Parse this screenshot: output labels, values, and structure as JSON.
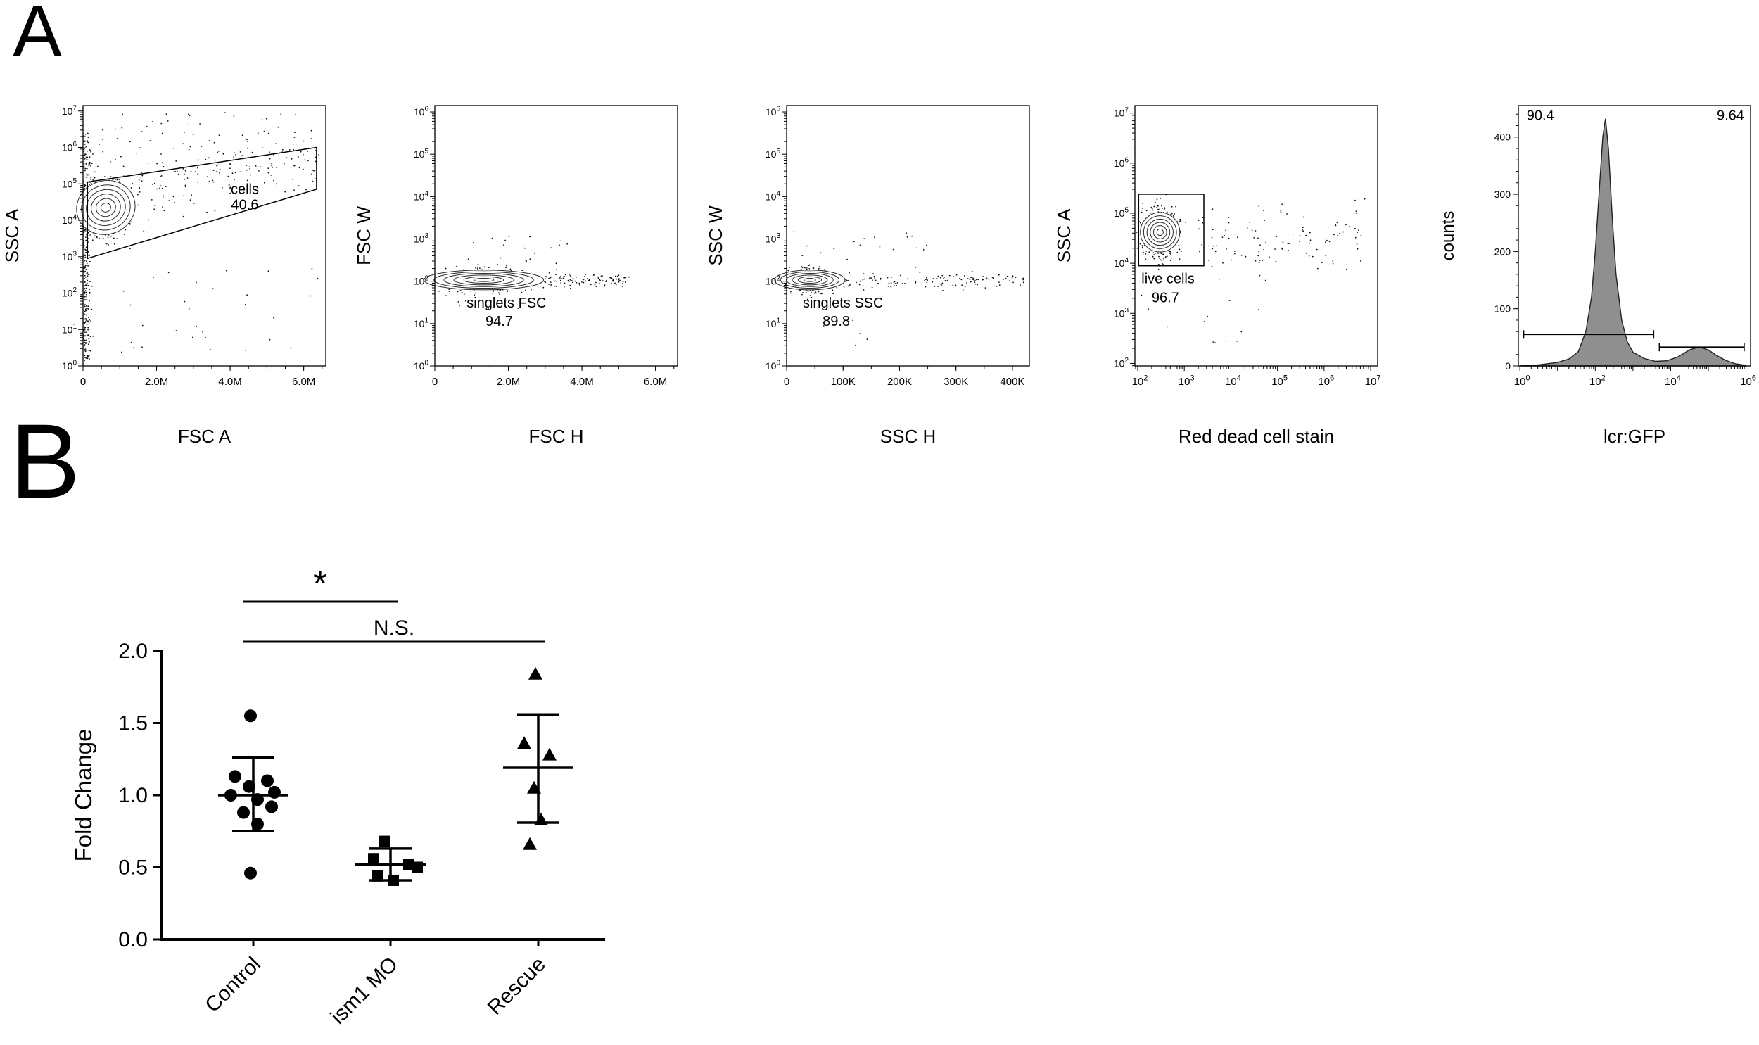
{
  "figure": {
    "panel_a_label": "A",
    "panel_b_label": "B"
  },
  "chart_data": [
    {
      "id": "flow-cells",
      "kind": "flow",
      "type": "scatter",
      "xlabel": "FSC A",
      "ylabel": "SSC A",
      "seed": 11,
      "x_axis": {
        "scale": "linear",
        "min": 0,
        "max": 6600000,
        "tick_values": [
          0,
          2000000,
          4000000,
          6000000
        ],
        "tick_labels": [
          "0",
          "2.0M",
          "4.0M",
          "6.0M"
        ],
        "minor": 500000
      },
      "y_axis": {
        "scale": "log",
        "min_exp": 0,
        "max_exp": 7,
        "pad": [
          0,
          0.15
        ]
      },
      "gate": {
        "name": "cells",
        "percent": "40.6",
        "shape": "polygon",
        "points": [
          [
            120000,
            2.95
          ],
          [
            120000,
            5.05
          ],
          [
            6350000,
            6.0
          ],
          [
            6350000,
            4.85
          ]
        ]
      },
      "labels": [
        {
          "text": "cells",
          "x": 4400000,
          "y": 4.72,
          "name": "gate-name"
        },
        {
          "text": "40.6",
          "x": 4400000,
          "y": 4.3,
          "name": "gate-percent"
        }
      ],
      "clusters": [
        {
          "kind": "edge",
          "cx": 20000,
          "sx": 90000,
          "y0": 0.15,
          "y1": 6.4,
          "n": 300
        },
        {
          "kind": "blob",
          "cx": 620000,
          "cy": 4.35,
          "sx": 280000,
          "sy": 0.45,
          "n": 330
        },
        {
          "kind": "band",
          "x0": 400000,
          "x1": 6500000,
          "cy": 4.55,
          "slope": 1.25,
          "sy": 0.38,
          "n": 190
        },
        {
          "kind": "uniform",
          "x0": 100000,
          "x1": 6400000,
          "y0": 5.7,
          "y1": 7.0,
          "n": 60
        },
        {
          "kind": "uniform",
          "x0": 400000,
          "x1": 6400000,
          "y0": 0.3,
          "y1": 2.8,
          "n": 30
        }
      ],
      "contours": [
        {
          "cx": 620000,
          "cy": 4.35,
          "rx": 42,
          "ry": 38,
          "rings": 6,
          "rot": -18
        }
      ]
    },
    {
      "id": "flow-singlets-fsc",
      "kind": "flow",
      "type": "scatter",
      "xlabel": "FSC H",
      "ylabel": "FSC W",
      "seed": 22,
      "x_axis": {
        "scale": "linear",
        "min": 0,
        "max": 6600000,
        "tick_values": [
          0,
          2000000,
          4000000,
          6000000
        ],
        "tick_labels": [
          "0",
          "2.0M",
          "4.0M",
          "6.0M"
        ],
        "minor": 500000
      },
      "y_axis": {
        "scale": "log",
        "min_exp": 0,
        "max_exp": 6,
        "pad": [
          0,
          0.15
        ]
      },
      "gate": {
        "name": "singlets FSC",
        "percent": "94.7",
        "shape": "none"
      },
      "labels": [
        {
          "text": "singlets FSC",
          "x": 1950000,
          "y": 1.38,
          "name": "gate-name"
        },
        {
          "text": "94.7",
          "x": 1750000,
          "y": 0.95,
          "name": "gate-percent"
        }
      ],
      "clusters": [
        {
          "kind": "blob",
          "cx": 1350000,
          "cy": 2.02,
          "sx": 480000,
          "sy": 0.13,
          "n": 420
        },
        {
          "kind": "band",
          "x0": 2300000,
          "x1": 5300000,
          "cy": 2.02,
          "slope": 0,
          "sy": 0.09,
          "n": 130
        },
        {
          "kind": "uniform",
          "x0": 300000,
          "x1": 3800000,
          "y0": 2.25,
          "y1": 3.1,
          "n": 22
        },
        {
          "kind": "uniform",
          "x0": 300000,
          "x1": 2500000,
          "y0": 1.3,
          "y1": 1.75,
          "n": 10
        }
      ],
      "contours": [
        {
          "cx": 1330000,
          "cy": 2.03,
          "rx": 85,
          "ry": 14,
          "rings": 6,
          "rot": 0
        }
      ]
    },
    {
      "id": "flow-singlets-ssc",
      "kind": "flow",
      "type": "scatter",
      "xlabel": "SSC H",
      "ylabel": "SSC W",
      "seed": 33,
      "x_axis": {
        "scale": "linear",
        "min": 0,
        "max": 430000,
        "tick_values": [
          0,
          100000,
          200000,
          300000,
          400000
        ],
        "tick_labels": [
          "0",
          "100K",
          "200K",
          "300K",
          "400K"
        ],
        "minor": 50000
      },
      "y_axis": {
        "scale": "log",
        "min_exp": 0,
        "max_exp": 6,
        "pad": [
          0,
          0.15
        ]
      },
      "gate": {
        "name": "singlets SSC",
        "percent": "89.8",
        "shape": "none"
      },
      "labels": [
        {
          "text": "singlets SSC",
          "x": 100000,
          "y": 1.38,
          "name": "gate-name"
        },
        {
          "text": "89.8",
          "x": 88000,
          "y": 0.95,
          "name": "gate-percent"
        }
      ],
      "clusters": [
        {
          "kind": "blob",
          "cx": 42000,
          "cy": 2.02,
          "sx": 16000,
          "sy": 0.14,
          "n": 420
        },
        {
          "kind": "band",
          "x0": 75000,
          "x1": 420000,
          "cy": 2.0,
          "slope": 0,
          "sy": 0.1,
          "n": 140
        },
        {
          "kind": "uniform",
          "x0": 5000,
          "x1": 260000,
          "y0": 2.3,
          "y1": 3.2,
          "n": 20
        },
        {
          "kind": "uniform",
          "x0": 5000,
          "x1": 150000,
          "y0": 0.3,
          "y1": 1.6,
          "n": 8
        }
      ],
      "contours": [
        {
          "cx": 41000,
          "cy": 2.03,
          "rx": 50,
          "ry": 14,
          "rings": 6,
          "rot": 0
        }
      ]
    },
    {
      "id": "flow-live",
      "kind": "flow",
      "type": "scatter",
      "xlabel": "Red dead cell stain",
      "ylabel": "SSC A",
      "seed": 44,
      "x_axis": {
        "scale": "log",
        "min_exp": 2,
        "max_exp": 7,
        "pad": [
          -0.06,
          0.15
        ]
      },
      "y_axis": {
        "scale": "log",
        "min_exp": 2,
        "max_exp": 7,
        "pad": [
          -0.05,
          0.15
        ]
      },
      "gate": {
        "name": "live cells",
        "percent": "96.7",
        "shape": "rect",
        "x": [
          2.02,
          3.42
        ],
        "y": [
          3.95,
          5.38
        ]
      },
      "labels": [
        {
          "text": "live cells",
          "x": 2.08,
          "y": 3.6,
          "anchor": "start",
          "name": "gate-name"
        },
        {
          "text": "96.7",
          "x": 2.3,
          "y": 3.22,
          "anchor": "start",
          "name": "gate-percent"
        }
      ],
      "clusters": [
        {
          "kind": "blob",
          "cx": 2.5,
          "cy": 4.62,
          "sx": 0.2,
          "sy": 0.26,
          "n": 460
        },
        {
          "kind": "band",
          "x0": 3.3,
          "x1": 7.0,
          "cy": 4.5,
          "slope": 0,
          "sy": 0.35,
          "n": 110
        },
        {
          "kind": "uniform",
          "x0": 2.0,
          "x1": 5.2,
          "y0": 2.4,
          "y1": 3.9,
          "n": 16
        }
      ],
      "contours": [
        {
          "cx": 2.48,
          "cy": 4.62,
          "rx": 28,
          "ry": 28,
          "rings": 6,
          "rot": 0
        }
      ]
    },
    {
      "id": "gfp-histogram",
      "kind": "histogram",
      "type": "area",
      "xlabel": "lcr:GFP",
      "ylabel": "counts",
      "x_axis": {
        "scale": "log",
        "min_exp": 0,
        "max_exp": 6,
        "pad": [
          -0.04,
          0.12
        ],
        "label_every": 2
      },
      "y_axis": {
        "scale": "linear",
        "min": 0,
        "max": 455,
        "tick_values": [
          0,
          100,
          200,
          300,
          400
        ],
        "tick_labels": [
          "0",
          "100",
          "200",
          "300",
          "400"
        ],
        "minor": 20
      },
      "series": [
        {
          "name": "lcr:GFP counts",
          "points": [
            [
              0,
              0
            ],
            [
              0.5,
              2
            ],
            [
              1.0,
              6
            ],
            [
              1.3,
              12
            ],
            [
              1.55,
              25
            ],
            [
              1.75,
              60
            ],
            [
              1.9,
              120
            ],
            [
              2.0,
              200
            ],
            [
              2.1,
              300
            ],
            [
              2.2,
              400
            ],
            [
              2.27,
              432
            ],
            [
              2.35,
              380
            ],
            [
              2.45,
              260
            ],
            [
              2.55,
              160
            ],
            [
              2.7,
              80
            ],
            [
              2.85,
              42
            ],
            [
              3.0,
              24
            ],
            [
              3.3,
              13
            ],
            [
              3.6,
              8
            ],
            [
              3.9,
              9
            ],
            [
              4.2,
              16
            ],
            [
              4.5,
              28
            ],
            [
              4.75,
              33
            ],
            [
              5.0,
              28
            ],
            [
              5.2,
              19
            ],
            [
              5.45,
              10
            ],
            [
              5.7,
              4
            ],
            [
              6.0,
              1
            ]
          ]
        }
      ],
      "markers": [
        {
          "label": "90.4",
          "from": 0.1,
          "to": 3.55,
          "y": 55
        },
        {
          "label": "9.64",
          "from": 3.7,
          "to": 5.95,
          "y": 33
        }
      ],
      "labels": [
        {
          "text": "90.4",
          "x": 0.18,
          "y": 430,
          "anchor": "start",
          "name": "percent-negative"
        },
        {
          "text": "9.64",
          "x": 5.95,
          "y": 430,
          "anchor": "end",
          "name": "percent-positive"
        }
      ],
      "fill_color": "#8f8f8f"
    },
    {
      "id": "fold-change",
      "kind": "dotplot",
      "type": "scatter",
      "ylabel": "Fold Change",
      "ylim": [
        0,
        2
      ],
      "yticks": [
        0,
        0.5,
        1,
        1.5,
        2
      ],
      "ytick_labels": [
        "0.0",
        "0.5",
        "1.0",
        "1.5",
        "2.0"
      ],
      "groups": [
        {
          "label": "Control",
          "marker": "circle",
          "mean": 1.0,
          "sd_low": 0.75,
          "sd_high": 1.26,
          "values": [
            1.55,
            1.13,
            1.1,
            1.06,
            1.02,
            1.0,
            0.97,
            0.92,
            0.88,
            0.8,
            0.46
          ],
          "dx": [
            -4,
            -26,
            20,
            -6,
            30,
            -32,
            6,
            26,
            -14,
            6,
            -4
          ]
        },
        {
          "label": "ism1 MO",
          "marker": "square",
          "mean": 0.52,
          "sd_low": 0.41,
          "sd_high": 0.63,
          "values": [
            0.68,
            0.56,
            0.52,
            0.5,
            0.44,
            0.41
          ],
          "dx": [
            -8,
            -24,
            26,
            38,
            -18,
            4
          ]
        },
        {
          "label": "Rescue",
          "marker": "triangle",
          "mean": 1.19,
          "sd_low": 0.81,
          "sd_high": 1.56,
          "values": [
            1.84,
            1.36,
            1.28,
            1.05,
            0.83,
            0.66
          ],
          "dx": [
            -4,
            -20,
            16,
            -6,
            4,
            -12
          ]
        }
      ],
      "significance": [
        {
          "groups": [
            0,
            1
          ],
          "label": "*"
        },
        {
          "groups": [
            0,
            2
          ],
          "label": "N.S."
        }
      ]
    }
  ]
}
